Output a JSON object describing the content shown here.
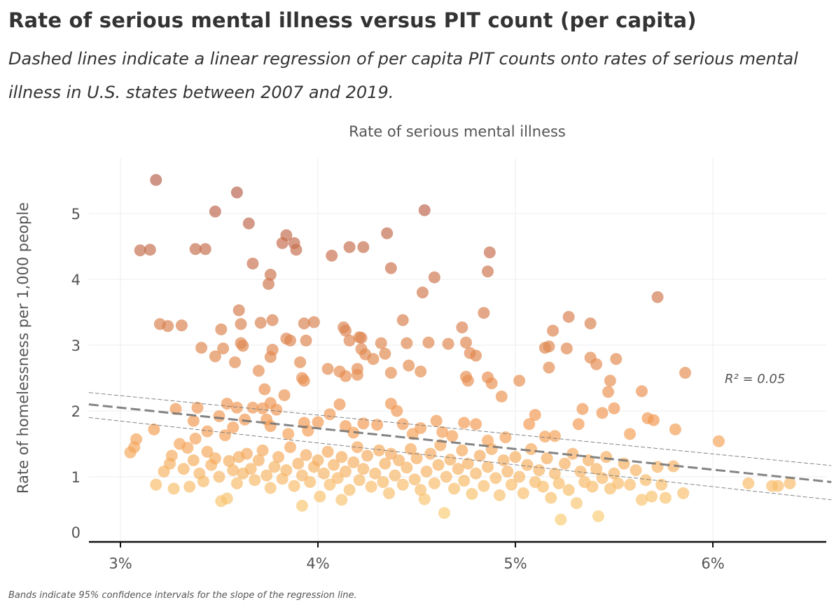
{
  "title": "Rate of serious mental illness versus PIT count (per capita)",
  "subtitle": "Dashed lines indicate a linear regression of per capita PIT counts onto rates of serious mental illness in U.S. states between 2007 and 2019.",
  "footer": "Bands indicate 95% confidence intervals for the slope of the regression line.",
  "chart_data": {
    "type": "scatter",
    "title": "Rate of serious mental illness versus PIT count (per capita)",
    "xlabel": "Rate of serious mental illness",
    "ylabel": "Rate of homelessness per 1,000 people",
    "xlim": [
      2.84,
      6.6
    ],
    "ylim": [
      0,
      5.7
    ],
    "x_ticks": [
      3,
      4,
      5,
      6
    ],
    "x_tick_labels": [
      "3%",
      "4%",
      "5%",
      "6%"
    ],
    "y_ticks": [
      0,
      1,
      2,
      3,
      4,
      5
    ],
    "y_tick_labels": [
      "0",
      "1",
      "2",
      "3",
      "4",
      "5"
    ],
    "grid": true,
    "annotation": "R² = 0.05",
    "color_scale": {
      "low": "#f9cd76",
      "mid": "#f39a52",
      "high": "#b8614c"
    },
    "regression": {
      "x": [
        2.84,
        6.6
      ],
      "y": [
        2.1,
        0.92
      ]
    },
    "ci_upper": {
      "x": [
        2.84,
        6.6
      ],
      "y": [
        2.28,
        1.17
      ]
    },
    "ci_lower": {
      "x": [
        2.84,
        6.6
      ],
      "y": [
        1.9,
        0.65
      ]
    },
    "points": [
      [
        3.18,
        5.51
      ],
      [
        3.59,
        5.32
      ],
      [
        3.48,
        5.03
      ],
      [
        3.65,
        4.85
      ],
      [
        4.54,
        5.05
      ],
      [
        3.1,
        4.44
      ],
      [
        3.15,
        4.45
      ],
      [
        3.38,
        4.46
      ],
      [
        3.43,
        4.46
      ],
      [
        3.67,
        4.24
      ],
      [
        3.84,
        4.67
      ],
      [
        3.82,
        4.55
      ],
      [
        3.88,
        4.55
      ],
      [
        3.89,
        4.45
      ],
      [
        3.76,
        4.07
      ],
      [
        3.75,
        3.93
      ],
      [
        4.07,
        4.36
      ],
      [
        4.16,
        4.49
      ],
      [
        4.23,
        4.49
      ],
      [
        4.35,
        4.7
      ],
      [
        4.37,
        4.17
      ],
      [
        4.59,
        4.03
      ],
      [
        4.53,
        3.8
      ],
      [
        4.87,
        4.41
      ],
      [
        4.86,
        4.12
      ],
      [
        5.72,
        3.73
      ],
      [
        3.2,
        3.32
      ],
      [
        3.24,
        3.29
      ],
      [
        3.31,
        3.3
      ],
      [
        3.6,
        3.53
      ],
      [
        3.61,
        3.32
      ],
      [
        3.61,
        3.03
      ],
      [
        3.62,
        2.99
      ],
      [
        3.51,
        3.24
      ],
      [
        3.41,
        2.96
      ],
      [
        3.52,
        2.95
      ],
      [
        3.48,
        2.83
      ],
      [
        3.58,
        2.74
      ],
      [
        3.71,
        3.34
      ],
      [
        3.77,
        3.38
      ],
      [
        3.77,
        2.93
      ],
      [
        3.76,
        2.82
      ],
      [
        3.7,
        2.61
      ],
      [
        3.73,
        2.33
      ],
      [
        3.72,
        2.04
      ],
      [
        3.76,
        2.12
      ],
      [
        3.84,
        3.1
      ],
      [
        3.86,
        3.07
      ],
      [
        3.93,
        3.33
      ],
      [
        3.98,
        3.35
      ],
      [
        3.94,
        3.07
      ],
      [
        3.91,
        2.74
      ],
      [
        3.92,
        2.5
      ],
      [
        3.93,
        2.46
      ],
      [
        3.83,
        2.24
      ],
      [
        4.05,
        2.64
      ],
      [
        4.11,
        2.6
      ],
      [
        4.14,
        2.53
      ],
      [
        4.2,
        2.64
      ],
      [
        4.13,
        3.27
      ],
      [
        4.14,
        3.22
      ],
      [
        4.21,
        3.12
      ],
      [
        4.22,
        3.11
      ],
      [
        4.16,
        3.07
      ],
      [
        4.22,
        2.94
      ],
      [
        4.24,
        2.86
      ],
      [
        4.2,
        2.55
      ],
      [
        4.32,
        3.03
      ],
      [
        4.28,
        2.79
      ],
      [
        4.34,
        2.87
      ],
      [
        4.37,
        2.58
      ],
      [
        4.43,
        3.38
      ],
      [
        4.45,
        3.03
      ],
      [
        4.46,
        2.69
      ],
      [
        4.52,
        2.6
      ],
      [
        4.56,
        3.04
      ],
      [
        4.66,
        3.02
      ],
      [
        4.73,
        3.27
      ],
      [
        4.75,
        3.04
      ],
      [
        4.77,
        2.88
      ],
      [
        4.8,
        2.84
      ],
      [
        4.75,
        2.52
      ],
      [
        4.76,
        2.46
      ],
      [
        4.84,
        3.49
      ],
      [
        4.86,
        2.51
      ],
      [
        4.88,
        2.42
      ],
      [
        4.93,
        2.22
      ],
      [
        5.02,
        2.46
      ],
      [
        5.15,
        2.96
      ],
      [
        5.17,
        2.98
      ],
      [
        5.19,
        3.22
      ],
      [
        5.17,
        2.66
      ],
      [
        5.27,
        3.43
      ],
      [
        5.26,
        2.95
      ],
      [
        5.38,
        3.33
      ],
      [
        5.38,
        2.81
      ],
      [
        5.41,
        2.71
      ],
      [
        5.51,
        2.79
      ],
      [
        5.48,
        2.46
      ],
      [
        5.47,
        2.29
      ],
      [
        5.64,
        2.3
      ],
      [
        5.86,
        2.58
      ],
      [
        3.05,
        1.37
      ],
      [
        3.07,
        1.45
      ],
      [
        3.08,
        1.57
      ],
      [
        3.17,
        1.72
      ],
      [
        3.28,
        2.03
      ],
      [
        3.39,
        2.05
      ],
      [
        3.37,
        1.85
      ],
      [
        3.44,
        1.69
      ],
      [
        3.54,
        2.11
      ],
      [
        3.59,
        2.05
      ],
      [
        3.5,
        1.92
      ],
      [
        3.57,
        1.75
      ],
      [
        3.53,
        1.63
      ],
      [
        3.63,
        1.87
      ],
      [
        3.67,
        2.05
      ],
      [
        3.74,
        1.87
      ],
      [
        3.76,
        1.77
      ],
      [
        3.79,
        2.02
      ],
      [
        3.85,
        1.65
      ],
      [
        3.93,
        1.82
      ],
      [
        3.95,
        1.7
      ],
      [
        4.0,
        1.83
      ],
      [
        4.06,
        1.95
      ],
      [
        4.11,
        2.1
      ],
      [
        4.14,
        1.77
      ],
      [
        4.18,
        1.67
      ],
      [
        4.23,
        1.81
      ],
      [
        4.3,
        1.79
      ],
      [
        4.37,
        2.11
      ],
      [
        4.4,
        2.0
      ],
      [
        4.43,
        1.8
      ],
      [
        4.48,
        1.65
      ],
      [
        4.52,
        1.74
      ],
      [
        4.6,
        1.85
      ],
      [
        4.63,
        1.68
      ],
      [
        4.68,
        1.62
      ],
      [
        4.74,
        1.82
      ],
      [
        4.8,
        1.8
      ],
      [
        4.86,
        1.55
      ],
      [
        4.95,
        1.6
      ],
      [
        5.07,
        1.8
      ],
      [
        5.1,
        1.94
      ],
      [
        5.15,
        1.61
      ],
      [
        5.2,
        1.62
      ],
      [
        5.32,
        1.8
      ],
      [
        5.34,
        2.03
      ],
      [
        5.44,
        1.97
      ],
      [
        5.5,
        2.04
      ],
      [
        5.58,
        1.65
      ],
      [
        5.67,
        1.89
      ],
      [
        5.7,
        1.86
      ],
      [
        5.81,
        1.72
      ],
      [
        6.03,
        1.54
      ],
      [
        3.18,
        0.88
      ],
      [
        3.22,
        1.08
      ],
      [
        3.25,
        1.2
      ],
      [
        3.26,
        1.32
      ],
      [
        3.27,
        0.82
      ],
      [
        3.3,
        1.5
      ],
      [
        3.32,
        1.12
      ],
      [
        3.34,
        1.44
      ],
      [
        3.35,
        0.85
      ],
      [
        3.37,
        1.25
      ],
      [
        3.38,
        1.58
      ],
      [
        3.4,
        1.05
      ],
      [
        3.42,
        0.93
      ],
      [
        3.44,
        1.38
      ],
      [
        3.46,
        1.18
      ],
      [
        3.48,
        1.28
      ],
      [
        3.5,
        1.0
      ],
      [
        3.51,
        0.63
      ],
      [
        3.54,
        0.67
      ],
      [
        3.55,
        1.24
      ],
      [
        3.57,
        1.1
      ],
      [
        3.59,
        0.9
      ],
      [
        3.6,
        1.3
      ],
      [
        3.62,
        1.05
      ],
      [
        3.64,
        1.35
      ],
      [
        3.66,
        1.12
      ],
      [
        3.68,
        0.95
      ],
      [
        3.7,
        1.25
      ],
      [
        3.72,
        1.4
      ],
      [
        3.74,
        1.02
      ],
      [
        3.76,
        0.83
      ],
      [
        3.78,
        1.15
      ],
      [
        3.8,
        1.3
      ],
      [
        3.82,
        0.97
      ],
      [
        3.84,
        1.1
      ],
      [
        3.86,
        1.45
      ],
      [
        3.88,
        0.86
      ],
      [
        3.9,
        1.2
      ],
      [
        3.92,
        0.56
      ],
      [
        3.92,
        1.02
      ],
      [
        3.94,
        1.33
      ],
      [
        3.96,
        0.92
      ],
      [
        3.98,
        1.15
      ],
      [
        4.0,
        1.25
      ],
      [
        4.01,
        0.7
      ],
      [
        4.03,
        1.05
      ],
      [
        4.05,
        1.38
      ],
      [
        4.06,
        0.88
      ],
      [
        4.08,
        1.18
      ],
      [
        4.1,
        0.98
      ],
      [
        4.12,
        0.65
      ],
      [
        4.12,
        1.3
      ],
      [
        4.14,
        1.08
      ],
      [
        4.16,
        0.8
      ],
      [
        4.18,
        1.22
      ],
      [
        4.2,
        1.45
      ],
      [
        4.21,
        0.95
      ],
      [
        4.23,
        1.12
      ],
      [
        4.25,
        1.32
      ],
      [
        4.27,
        0.85
      ],
      [
        4.29,
        1.05
      ],
      [
        4.31,
        1.4
      ],
      [
        4.33,
        0.92
      ],
      [
        4.34,
        1.2
      ],
      [
        4.36,
        0.75
      ],
      [
        4.37,
        1.35
      ],
      [
        4.39,
        1.02
      ],
      [
        4.41,
        1.25
      ],
      [
        4.43,
        0.88
      ],
      [
        4.45,
        1.14
      ],
      [
        4.47,
        1.42
      ],
      [
        4.49,
        0.96
      ],
      [
        4.5,
        1.28
      ],
      [
        4.52,
        0.8
      ],
      [
        4.54,
        0.66
      ],
      [
        4.55,
        1.08
      ],
      [
        4.57,
        1.35
      ],
      [
        4.59,
        0.9
      ],
      [
        4.61,
        1.18
      ],
      [
        4.62,
        1.48
      ],
      [
        4.64,
        0.45
      ],
      [
        4.65,
        1.0
      ],
      [
        4.67,
        1.26
      ],
      [
        4.69,
        0.82
      ],
      [
        4.71,
        1.12
      ],
      [
        4.73,
        1.4
      ],
      [
        4.74,
        0.94
      ],
      [
        4.76,
        1.2
      ],
      [
        4.78,
        0.74
      ],
      [
        4.8,
        1.05
      ],
      [
        4.82,
        1.32
      ],
      [
        4.84,
        0.86
      ],
      [
        4.86,
        1.15
      ],
      [
        4.88,
        1.42
      ],
      [
        4.9,
        0.98
      ],
      [
        4.92,
        0.72
      ],
      [
        4.94,
        1.25
      ],
      [
        4.96,
        1.08
      ],
      [
        4.98,
        0.88
      ],
      [
        5.0,
        1.3
      ],
      [
        5.02,
        1.0
      ],
      [
        5.04,
        0.75
      ],
      [
        5.06,
        1.18
      ],
      [
        5.08,
        1.42
      ],
      [
        5.1,
        0.92
      ],
      [
        5.12,
        1.1
      ],
      [
        5.14,
        0.85
      ],
      [
        5.16,
        1.28
      ],
      [
        5.18,
        0.68
      ],
      [
        5.2,
        1.05
      ],
      [
        5.22,
        0.9
      ],
      [
        5.23,
        0.35
      ],
      [
        5.25,
        1.2
      ],
      [
        5.27,
        0.8
      ],
      [
        5.29,
        1.35
      ],
      [
        5.31,
        0.6
      ],
      [
        5.33,
        1.08
      ],
      [
        5.35,
        0.92
      ],
      [
        5.37,
        1.25
      ],
      [
        5.39,
        0.85
      ],
      [
        5.41,
        1.12
      ],
      [
        5.42,
        0.4
      ],
      [
        5.44,
        0.98
      ],
      [
        5.46,
        1.3
      ],
      [
        5.48,
        0.82
      ],
      [
        5.5,
        1.05
      ],
      [
        5.52,
        0.9
      ],
      [
        5.55,
        1.2
      ],
      [
        5.58,
        0.88
      ],
      [
        5.61,
        1.1
      ],
      [
        5.64,
        0.65
      ],
      [
        5.66,
        0.95
      ],
      [
        5.69,
        0.7
      ],
      [
        5.72,
        1.15
      ],
      [
        5.74,
        0.88
      ],
      [
        5.76,
        0.68
      ],
      [
        5.8,
        1.16
      ],
      [
        5.85,
        0.75
      ],
      [
        6.18,
        0.9
      ],
      [
        6.3,
        0.86
      ],
      [
        6.33,
        0.86
      ],
      [
        6.39,
        0.9
      ]
    ]
  }
}
